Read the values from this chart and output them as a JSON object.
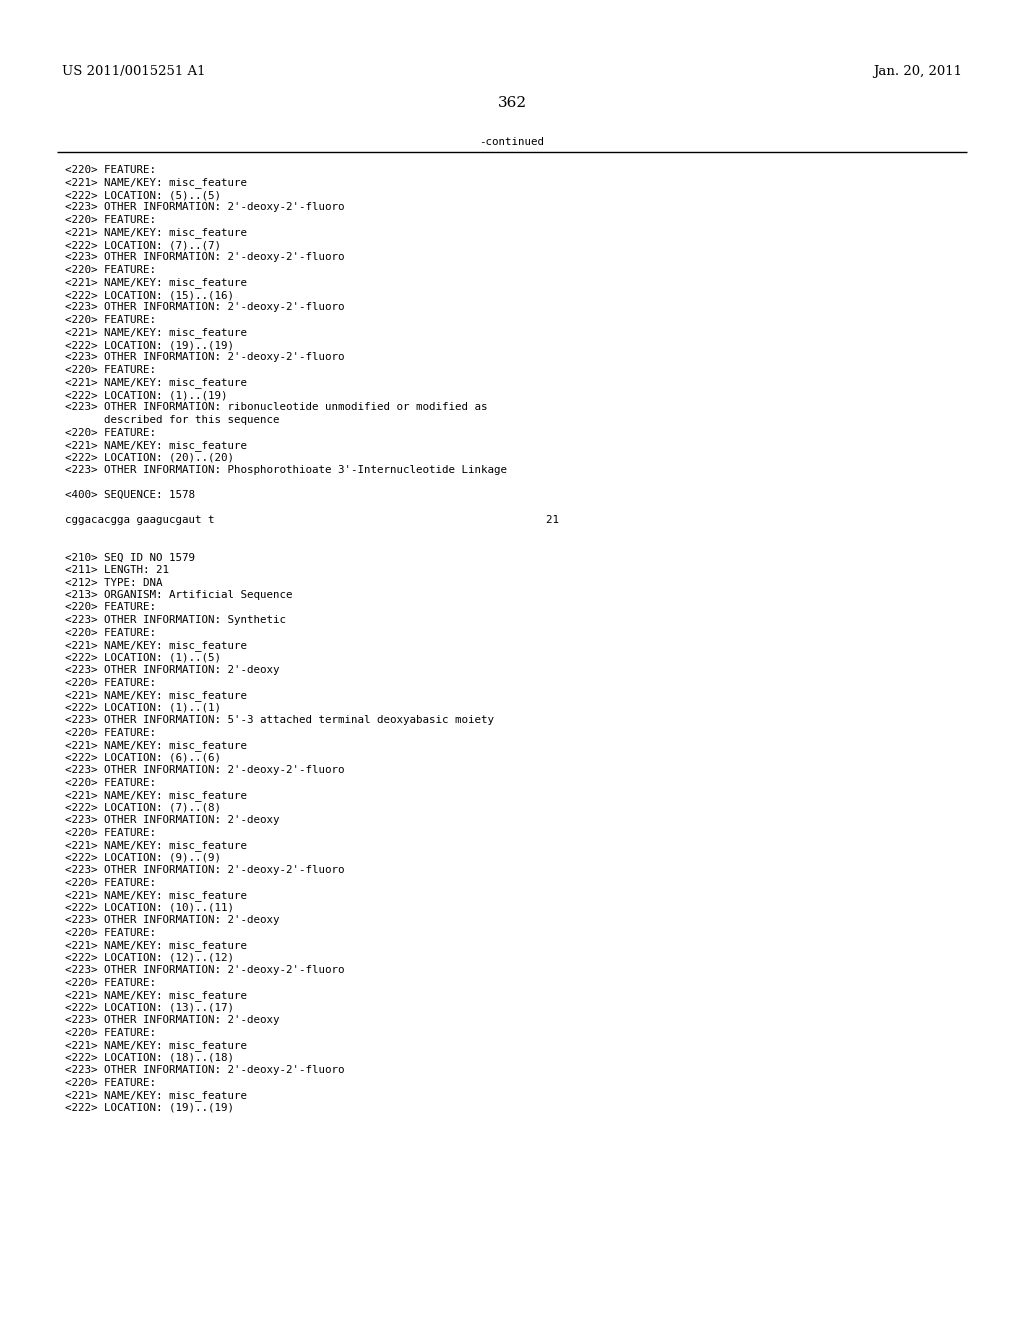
{
  "header_left": "US 2011/0015251 A1",
  "header_right": "Jan. 20, 2011",
  "page_number": "362",
  "continued_label": "-continued",
  "background_color": "#ffffff",
  "text_color": "#000000",
  "font_size_header": 9.5,
  "font_size_page_num": 11.0,
  "font_size_body": 7.8,
  "lines": [
    "<220> FEATURE:",
    "<221> NAME/KEY: misc_feature",
    "<222> LOCATION: (5)..(5)",
    "<223> OTHER INFORMATION: 2'-deoxy-2'-fluoro",
    "<220> FEATURE:",
    "<221> NAME/KEY: misc_feature",
    "<222> LOCATION: (7)..(7)",
    "<223> OTHER INFORMATION: 2'-deoxy-2'-fluoro",
    "<220> FEATURE:",
    "<221> NAME/KEY: misc_feature",
    "<222> LOCATION: (15)..(16)",
    "<223> OTHER INFORMATION: 2'-deoxy-2'-fluoro",
    "<220> FEATURE:",
    "<221> NAME/KEY: misc_feature",
    "<222> LOCATION: (19)..(19)",
    "<223> OTHER INFORMATION: 2'-deoxy-2'-fluoro",
    "<220> FEATURE:",
    "<221> NAME/KEY: misc_feature",
    "<222> LOCATION: (1)..(19)",
    "<223> OTHER INFORMATION: ribonucleotide unmodified or modified as",
    "      described for this sequence",
    "<220> FEATURE:",
    "<221> NAME/KEY: misc_feature",
    "<222> LOCATION: (20)..(20)",
    "<223> OTHER INFORMATION: Phosphorothioate 3'-Internucleotide Linkage",
    "",
    "<400> SEQUENCE: 1578",
    "",
    "cggacacgga gaagucgaut t                                                   21",
    "",
    "",
    "<210> SEQ ID NO 1579",
    "<211> LENGTH: 21",
    "<212> TYPE: DNA",
    "<213> ORGANISM: Artificial Sequence",
    "<220> FEATURE:",
    "<223> OTHER INFORMATION: Synthetic",
    "<220> FEATURE:",
    "<221> NAME/KEY: misc_feature",
    "<222> LOCATION: (1)..(5)",
    "<223> OTHER INFORMATION: 2'-deoxy",
    "<220> FEATURE:",
    "<221> NAME/KEY: misc_feature",
    "<222> LOCATION: (1)..(1)",
    "<223> OTHER INFORMATION: 5'-3 attached terminal deoxyabasic moiety",
    "<220> FEATURE:",
    "<221> NAME/KEY: misc_feature",
    "<222> LOCATION: (6)..(6)",
    "<223> OTHER INFORMATION: 2'-deoxy-2'-fluoro",
    "<220> FEATURE:",
    "<221> NAME/KEY: misc_feature",
    "<222> LOCATION: (7)..(8)",
    "<223> OTHER INFORMATION: 2'-deoxy",
    "<220> FEATURE:",
    "<221> NAME/KEY: misc_feature",
    "<222> LOCATION: (9)..(9)",
    "<223> OTHER INFORMATION: 2'-deoxy-2'-fluoro",
    "<220> FEATURE:",
    "<221> NAME/KEY: misc_feature",
    "<222> LOCATION: (10)..(11)",
    "<223> OTHER INFORMATION: 2'-deoxy",
    "<220> FEATURE:",
    "<221> NAME/KEY: misc_feature",
    "<222> LOCATION: (12)..(12)",
    "<223> OTHER INFORMATION: 2'-deoxy-2'-fluoro",
    "<220> FEATURE:",
    "<221> NAME/KEY: misc_feature",
    "<222> LOCATION: (13)..(17)",
    "<223> OTHER INFORMATION: 2'-deoxy",
    "<220> FEATURE:",
    "<221> NAME/KEY: misc_feature",
    "<222> LOCATION: (18)..(18)",
    "<223> OTHER INFORMATION: 2'-deoxy-2'-fluoro",
    "<220> FEATURE:",
    "<221> NAME/KEY: misc_feature",
    "<222> LOCATION: (19)..(19)"
  ]
}
